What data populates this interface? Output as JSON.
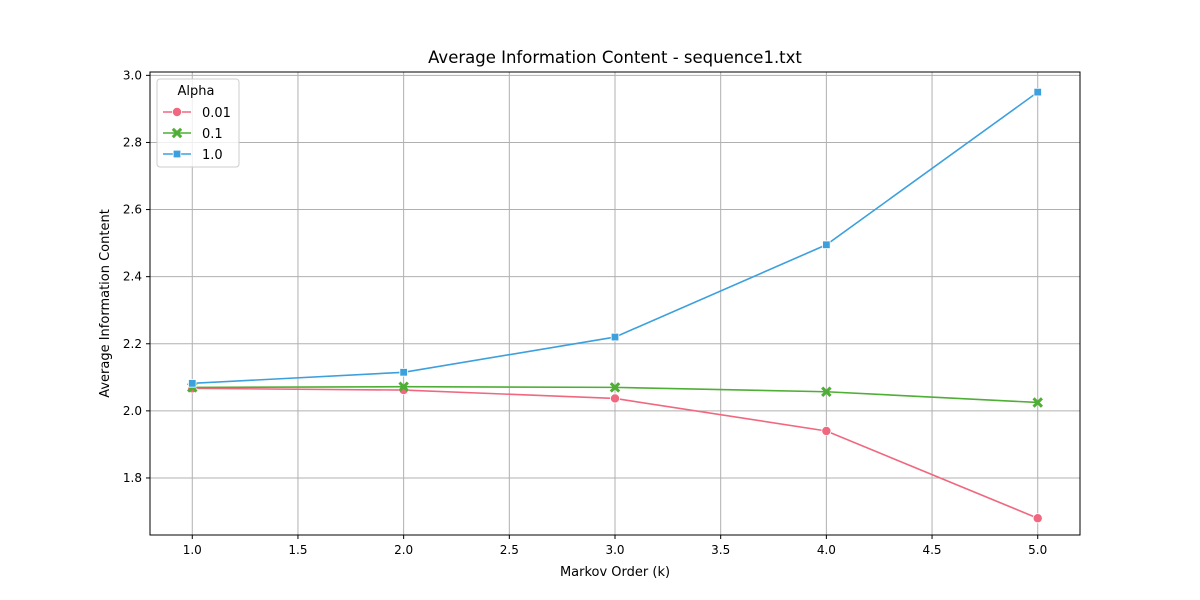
{
  "chart_data": {
    "type": "line",
    "title": "Average Information Content - sequence1.txt",
    "xlabel": "Markov Order (k)",
    "ylabel": "Average Information Content",
    "xlim": [
      0.8,
      5.2
    ],
    "ylim": [
      1.63,
      3.01
    ],
    "x": [
      1.0,
      2.0,
      3.0,
      4.0,
      5.0
    ],
    "xticks": [
      "1.0",
      "1.5",
      "2.0",
      "2.5",
      "3.0",
      "3.5",
      "4.0",
      "4.5",
      "5.0"
    ],
    "yticks": [
      "1.8",
      "2.0",
      "2.2",
      "2.4",
      "2.6",
      "2.8",
      "3.0"
    ],
    "grid": true,
    "legend": {
      "title": "Alpha",
      "placement": "top-left"
    },
    "series": [
      {
        "name": "0.01",
        "color": "#f0687f",
        "marker": "circle",
        "values": [
          2.067,
          2.062,
          2.037,
          1.94,
          1.68
        ]
      },
      {
        "name": "0.1",
        "color": "#4fae35",
        "marker": "x",
        "values": [
          2.07,
          2.072,
          2.07,
          2.057,
          2.025
        ]
      },
      {
        "name": "1.0",
        "color": "#3ca0dd",
        "marker": "square",
        "values": [
          2.082,
          2.115,
          2.22,
          2.495,
          2.95
        ]
      }
    ]
  }
}
